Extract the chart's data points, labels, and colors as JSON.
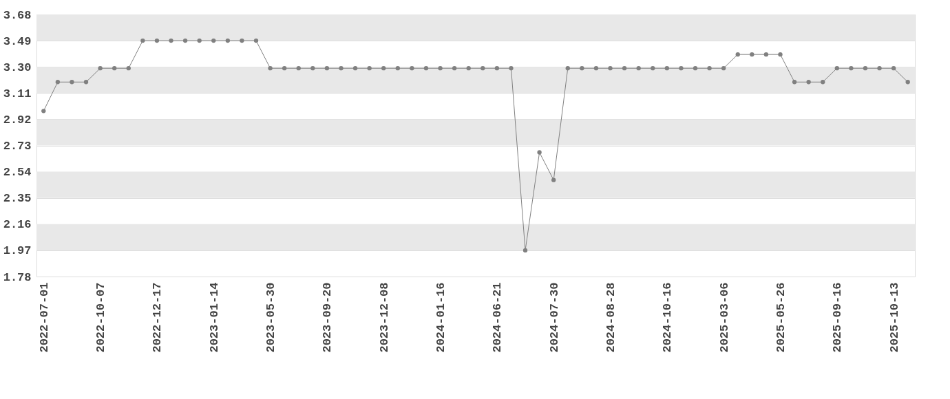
{
  "chart_data": {
    "type": "line",
    "categories": [
      "2022-07-01",
      null,
      null,
      null,
      "2022-10-07",
      null,
      null,
      null,
      "2022-12-17",
      null,
      null,
      null,
      "2023-01-14",
      null,
      null,
      null,
      "2023-05-30",
      null,
      null,
      null,
      "2023-09-20",
      null,
      null,
      null,
      "2023-12-08",
      null,
      null,
      null,
      "2024-01-16",
      null,
      null,
      null,
      "2024-06-21",
      null,
      null,
      null,
      "2024-07-30",
      null,
      null,
      null,
      "2024-08-28",
      null,
      null,
      null,
      "2024-10-16",
      null,
      null,
      null,
      "2025-03-06",
      null,
      null,
      null,
      "2025-05-26",
      null,
      null,
      null,
      "2025-09-16",
      null,
      null,
      null,
      "2025-10-13",
      null
    ],
    "series": [
      {
        "color": "#808080",
        "values": [
          2.98,
          3.19,
          3.19,
          3.19,
          3.29,
          3.29,
          3.29,
          3.49,
          3.49,
          3.49,
          3.49,
          3.49,
          3.49,
          3.49,
          3.49,
          3.49,
          3.29,
          3.29,
          3.29,
          3.29,
          3.29,
          3.29,
          3.29,
          3.29,
          3.29,
          3.29,
          3.29,
          3.29,
          3.29,
          3.29,
          3.29,
          3.29,
          3.29,
          3.29,
          1.97,
          2.68,
          2.48,
          3.29,
          3.29,
          3.29,
          3.29,
          3.29,
          3.29,
          3.29,
          3.29,
          3.29,
          3.29,
          3.29,
          3.29,
          3.39,
          3.39,
          3.39,
          3.39,
          3.19,
          3.19,
          3.19,
          3.29,
          3.29,
          3.29,
          3.29,
          3.29,
          3.19
        ]
      }
    ],
    "ylim": [
      1.78,
      3.68
    ],
    "yticks": [
      1.78,
      1.97,
      2.16,
      2.35,
      2.54,
      2.73,
      2.92,
      3.11,
      {
        "value": 3.3,
        "label": "3.30"
      },
      3.49,
      3.68
    ],
    "grid": "y",
    "marker": "circle",
    "line_style": "solid",
    "legend": false
  }
}
